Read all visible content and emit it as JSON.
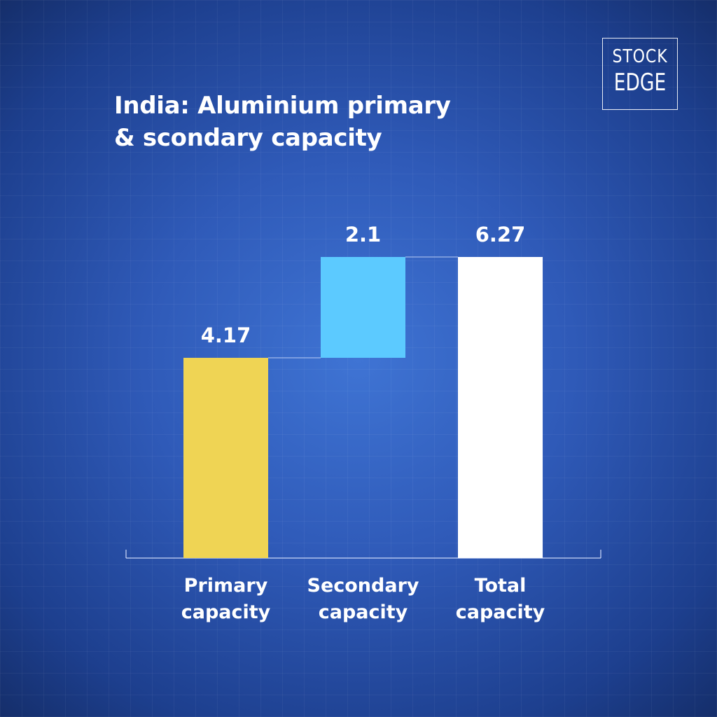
{
  "title_lines": [
    "India: Aluminium primary",
    "& scondary capacity"
  ],
  "logo": {
    "line1": "STOCK",
    "line2": "EDGE"
  },
  "chart_data": {
    "type": "waterfall",
    "categories": [
      [
        "Primary",
        "capacity"
      ],
      [
        "Secondary",
        "capacity"
      ],
      [
        "Total",
        "capacity"
      ]
    ],
    "values": [
      4.17,
      2.1,
      6.27
    ],
    "bases": [
      0,
      4.17,
      0
    ],
    "value_labels": [
      "4.17",
      "2.1",
      "6.27"
    ],
    "colors": [
      "#efd454",
      "#5ccaff",
      "#ffffff"
    ],
    "ylim": [
      0,
      6.27
    ],
    "grid": false,
    "legend": "none"
  }
}
